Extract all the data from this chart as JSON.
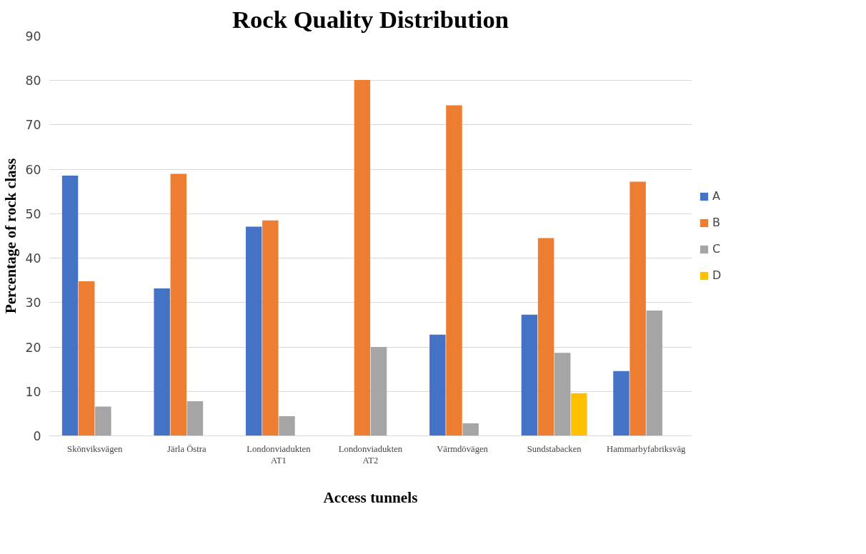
{
  "chart_data": {
    "type": "bar",
    "title": "Rock Quality Distribution",
    "xlabel": "Access tunnels",
    "ylabel": "Percentage of rock class",
    "categories": [
      "Skönviksvägen",
      "Järla Östra",
      "Londonviadukten AT1",
      "Londonviadukten AT2",
      "Värmdövägen",
      "Sundstabacken",
      "Hammarbyfabriksväg"
    ],
    "series": [
      {
        "name": "A",
        "color": "#4472c4",
        "values": [
          58.6,
          33.2,
          47.1,
          0,
          22.8,
          27.3,
          14.6
        ]
      },
      {
        "name": "B",
        "color": "#ed7d31",
        "values": [
          34.8,
          59.0,
          48.5,
          80.1,
          74.4,
          44.5,
          57.2
        ]
      },
      {
        "name": "C",
        "color": "#a5a5a5",
        "values": [
          6.6,
          7.8,
          4.4,
          20.0,
          2.8,
          18.7,
          28.2
        ]
      },
      {
        "name": "D",
        "color": "#ffc000",
        "values": [
          0,
          0,
          0,
          0,
          0,
          9.6,
          0
        ]
      }
    ],
    "ylim": [
      0,
      90
    ],
    "yticks": [
      0,
      10,
      20,
      30,
      40,
      50,
      60,
      70,
      80,
      90
    ],
    "grid": "y",
    "legend": "right"
  }
}
